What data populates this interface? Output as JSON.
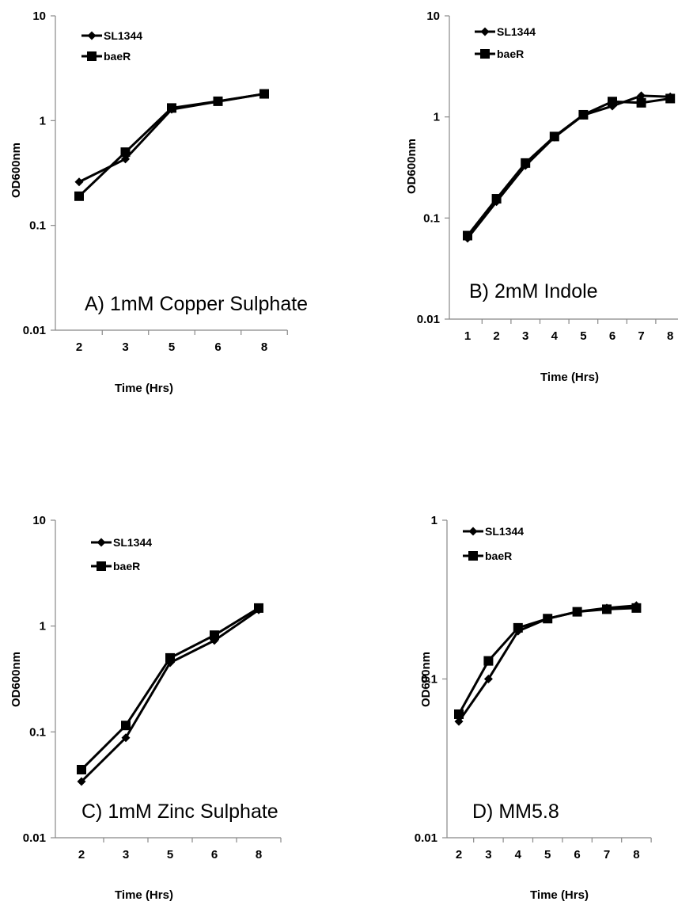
{
  "chart_data": [
    {
      "type": "line",
      "title": "A) 1mM Copper Sulphate",
      "xlabel": "Time (Hrs)",
      "ylabel": "OD600nm",
      "yscale": "log",
      "ylim": [
        0.01,
        10
      ],
      "ytick_labels": [
        "10",
        "1",
        "0.1",
        "0.01"
      ],
      "categories": [
        "2",
        "3",
        "5",
        "6",
        "8"
      ],
      "grid": false,
      "legend": "top-left",
      "series": [
        {
          "name": "SL1344",
          "marker": "diamond",
          "values": [
            0.26,
            0.43,
            1.28,
            1.52,
            1.8
          ]
        },
        {
          "name": "baeR",
          "marker": "square",
          "values": [
            0.19,
            0.5,
            1.32,
            1.53,
            1.8
          ]
        }
      ]
    },
    {
      "type": "line",
      "title": "B)  2mM Indole",
      "xlabel": "Time (Hrs)",
      "ylabel": "OD600nm",
      "yscale": "log",
      "ylim": [
        0.01,
        10
      ],
      "ytick_labels": [
        "10",
        "1",
        "0.1",
        "0.01"
      ],
      "categories": [
        "1",
        "2",
        "3",
        "4",
        "5",
        "6",
        "7",
        "8"
      ],
      "grid": false,
      "legend": "top-left",
      "series": [
        {
          "name": "SL1344",
          "marker": "diamond",
          "values": [
            0.063,
            0.145,
            0.33,
            0.63,
            1.04,
            1.28,
            1.62,
            1.58
          ]
        },
        {
          "name": "baeR",
          "marker": "square",
          "values": [
            0.067,
            0.155,
            0.35,
            0.64,
            1.05,
            1.42,
            1.38,
            1.52
          ]
        }
      ]
    },
    {
      "type": "line",
      "title": "C) 1mM Zinc Sulphate",
      "xlabel": "Time (Hrs)",
      "ylabel": "OD600nm",
      "yscale": "log",
      "ylim": [
        0.01,
        10
      ],
      "ytick_labels": [
        "10",
        "1",
        "0.1",
        "0.01"
      ],
      "categories": [
        "2",
        "3",
        "5",
        "6",
        "8"
      ],
      "grid": false,
      "legend": "top-left",
      "series": [
        {
          "name": "SL1344",
          "marker": "diamond",
          "values": [
            0.034,
            0.088,
            0.45,
            0.73,
            1.42
          ]
        },
        {
          "name": "baeR",
          "marker": "square",
          "values": [
            0.044,
            0.115,
            0.5,
            0.82,
            1.48
          ]
        }
      ]
    },
    {
      "type": "line",
      "title": "D) MM5.8",
      "xlabel": "Time (Hrs)",
      "ylabel": "OD600nm",
      "yscale": "log",
      "ylim": [
        0.01,
        1
      ],
      "ytick_labels": [
        "1",
        "0.1",
        "0.01"
      ],
      "categories": [
        "2",
        "3",
        "4",
        "5",
        "6",
        "7",
        "8"
      ],
      "grid": false,
      "legend": "top-left",
      "series": [
        {
          "name": "SL1344",
          "marker": "diamond",
          "values": [
            0.054,
            0.1,
            0.2,
            0.24,
            0.265,
            0.28,
            0.29
          ]
        },
        {
          "name": "baeR",
          "marker": "square",
          "values": [
            0.06,
            0.13,
            0.21,
            0.24,
            0.265,
            0.275,
            0.28
          ]
        }
      ]
    }
  ]
}
